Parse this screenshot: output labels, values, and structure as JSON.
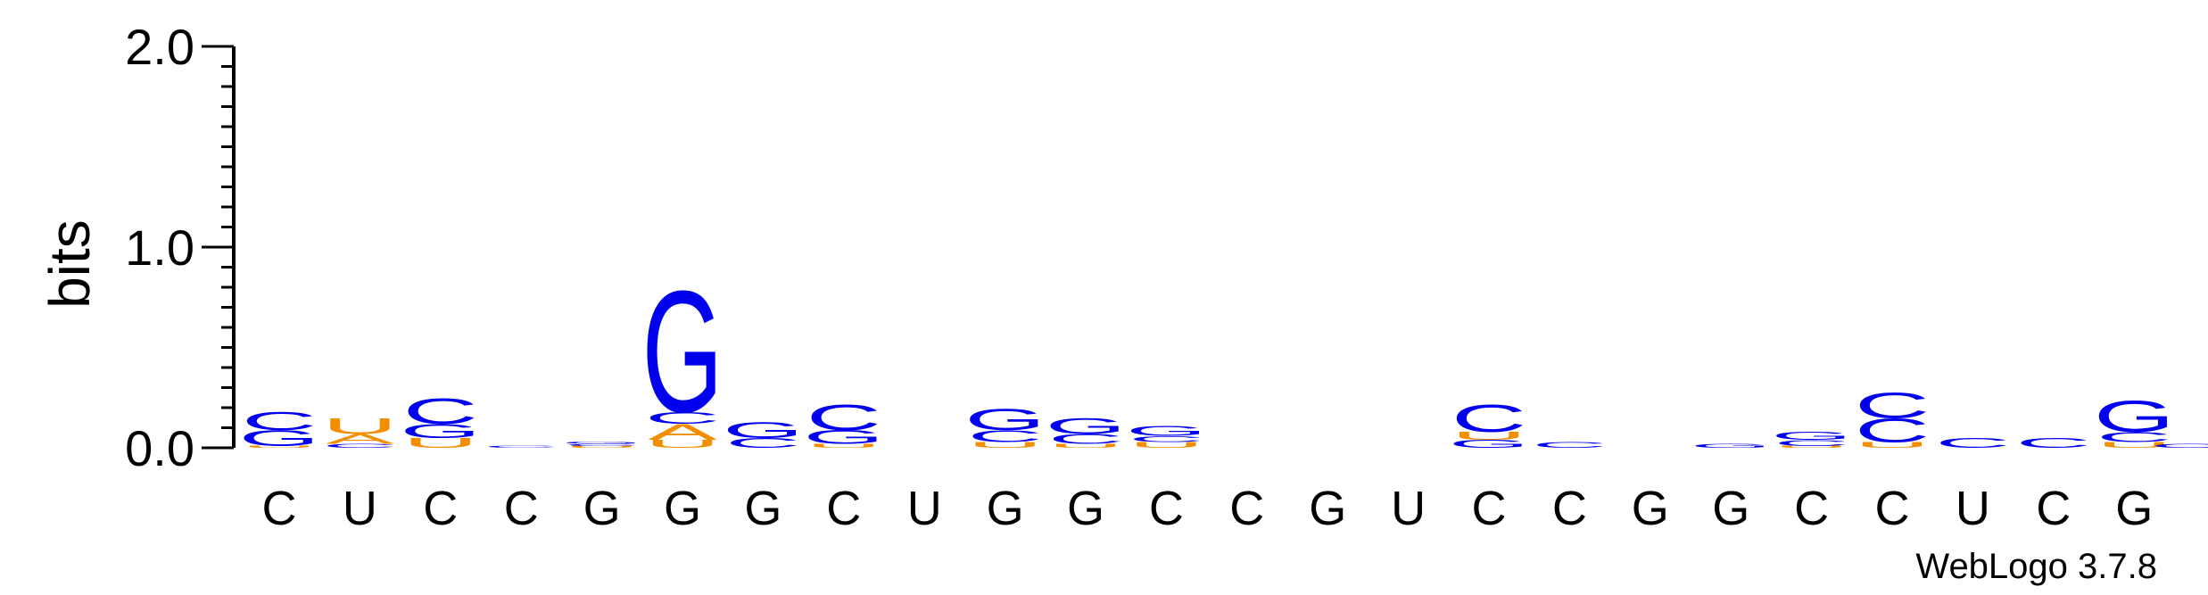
{
  "chart_data": {
    "type": "sequence-logo",
    "ylabel": "bits",
    "ylim": [
      0,
      2.0
    ],
    "yticks": [
      {
        "value": 0.0,
        "label": "0.0"
      },
      {
        "value": 1.0,
        "label": "1.0"
      },
      {
        "value": 2.0,
        "label": "2.0"
      }
    ],
    "positions": [
      "C",
      "U",
      "C",
      "C",
      "G",
      "G",
      "G",
      "C",
      "U",
      "G",
      "G",
      "C",
      "C",
      "G",
      "U",
      "C",
      "C",
      "G",
      "G",
      "C",
      "C",
      "U",
      "C",
      "G"
    ],
    "letter_colors": {
      "A": "#f28e00",
      "U": "#f28e00",
      "C": "#0000ee",
      "G": "#0000ee"
    },
    "stacks": [
      [
        [
          "U",
          0.01
        ],
        [
          "G",
          0.08
        ],
        [
          "C",
          0.09
        ]
      ],
      [
        [
          "C",
          0.02
        ],
        [
          "A",
          0.05
        ],
        [
          "U",
          0.08
        ]
      ],
      [
        [
          "U",
          0.05
        ],
        [
          "G",
          0.07
        ],
        [
          "C",
          0.13
        ]
      ],
      [
        [
          "C",
          0.01
        ]
      ],
      [
        [
          "U",
          0.01
        ],
        [
          "C",
          0.01
        ],
        [
          "G",
          0.01
        ]
      ],
      [
        [
          "U",
          0.04
        ],
        [
          "A",
          0.08
        ],
        [
          "C",
          0.06
        ],
        [
          "G",
          0.62
        ]
      ],
      [
        [
          "C",
          0.05
        ],
        [
          "G",
          0.08
        ]
      ],
      [
        [
          "U",
          0.02
        ],
        [
          "G",
          0.07
        ],
        [
          "C",
          0.13
        ]
      ],
      [],
      [
        [
          "U",
          0.03
        ],
        [
          "C",
          0.06
        ],
        [
          "G",
          0.11
        ]
      ],
      [
        [
          "U",
          0.02
        ],
        [
          "C",
          0.05
        ],
        [
          "G",
          0.08
        ]
      ],
      [
        [
          "U",
          0.03
        ],
        [
          "C",
          0.03
        ],
        [
          "G",
          0.05
        ]
      ],
      [],
      [],
      [],
      [
        [
          "G",
          0.04
        ],
        [
          "U",
          0.04
        ],
        [
          "C",
          0.14
        ]
      ],
      [
        [
          "C",
          0.03
        ]
      ],
      [],
      [
        [
          "G",
          0.02
        ]
      ],
      [
        [
          "U",
          0.01
        ],
        [
          "C",
          0.03
        ],
        [
          "G",
          0.04
        ]
      ],
      [
        [
          "U",
          0.03
        ],
        [
          "C",
          0.12
        ],
        [
          "C",
          0.13
        ]
      ],
      [
        [
          "C",
          0.05
        ]
      ],
      [
        [
          "C",
          0.05
        ]
      ],
      [
        [
          "U",
          0.03
        ],
        [
          "C",
          0.05
        ],
        [
          "G",
          0.16
        ]
      ]
    ],
    "stack_overflow_last": [
      [
        "C",
        0.02
      ]
    ]
  },
  "footer": "WebLogo 3.7.8"
}
